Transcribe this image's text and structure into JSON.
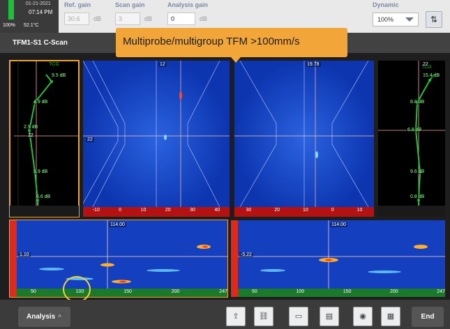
{
  "status": {
    "date": "01-21-2021",
    "time": "07:14 PM",
    "battery": "100%",
    "temp": "52.1°C"
  },
  "gains": {
    "ref": {
      "label": "Ref. gain",
      "value": "30.6",
      "unit": "dB"
    },
    "scan": {
      "label": "Scan gain",
      "value": "3",
      "unit": "dB"
    },
    "analysis": {
      "label": "Analysis gain",
      "value": "0",
      "unit": "dB"
    }
  },
  "dynamic": {
    "label": "Dynamic",
    "value": "100%"
  },
  "title": "TFM1-S1 C-Scan",
  "callout": "Multiprobe/multigroup TFM >100mm/s",
  "colors": {
    "accent": "#f0a331",
    "scan_blue": "#1242c8",
    "curve_green": "#22c03a"
  },
  "left_ascan": {
    "tag": "TCG",
    "gains": [
      "9.5 dB",
      "4.9 dB",
      "2.9 dB",
      "5.9 dB",
      "6.6 dB"
    ],
    "marker": "22"
  },
  "right_ascan": {
    "tag": "TCG",
    "gains": [
      "15.4 dB",
      "8.8 dB",
      "6.8 dB",
      "9.6 dB",
      "0.8 dB"
    ],
    "marker": "22"
  },
  "sscan_left": {
    "cursor": "12",
    "marker": "22",
    "ticks": [
      "-10",
      "0",
      "10",
      "20",
      "30",
      "40"
    ]
  },
  "sscan_right": {
    "cursor": "19.78",
    "ticks": [
      "30",
      "20",
      "10",
      "0",
      "10"
    ]
  },
  "cscan_left": {
    "cursor": "114.00",
    "offset": "1.10",
    "ticks": [
      "50",
      "100",
      "150",
      "200",
      "247"
    ]
  },
  "cscan_right": {
    "cursor": "114.00",
    "offset": "-5.22",
    "ticks": [
      "50",
      "100",
      "150",
      "200",
      "247"
    ]
  },
  "bottom": {
    "analysis_label": "Analysis",
    "end_label": "End",
    "tools": [
      "export-icon",
      "link-icon",
      "layout-icon",
      "report-icon",
      "camera-icon",
      "save-icon"
    ]
  }
}
